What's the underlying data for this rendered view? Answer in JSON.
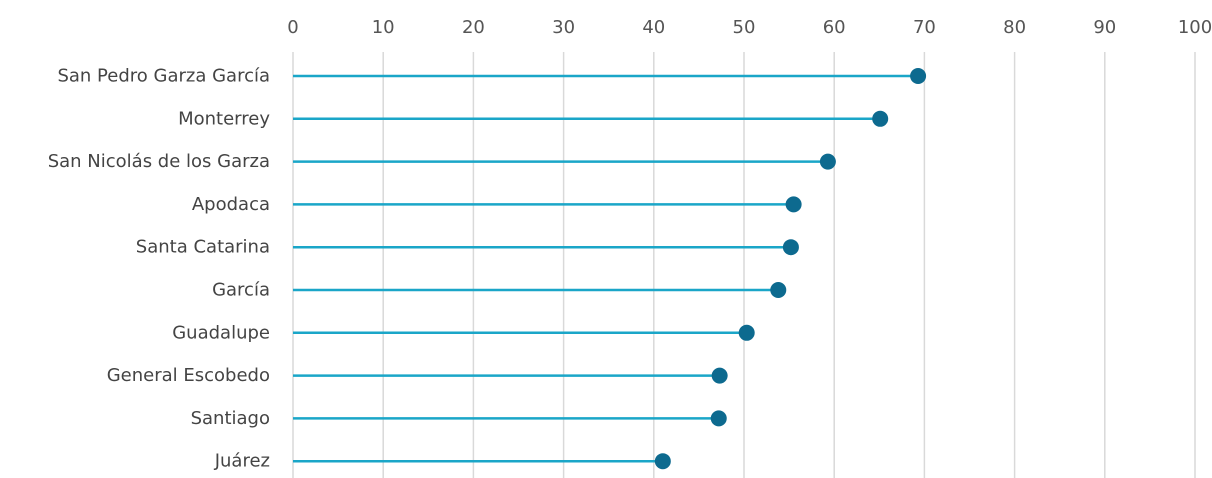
{
  "chart_data": {
    "type": "lollipop",
    "title": "",
    "xlabel": "",
    "ylabel": "",
    "orientation": "horizontal",
    "xlim": [
      0,
      100
    ],
    "x_ticks": [
      0,
      10,
      20,
      30,
      40,
      50,
      60,
      70,
      80,
      90,
      100
    ],
    "x_axis_position": "top",
    "grid": "vertical",
    "legend": "none",
    "categories": [
      "San Pedro Garza García",
      "Monterrey",
      "San Nicolás de los Garza",
      "Apodaca",
      "Santa Catarina",
      "García",
      "Guadalupe",
      "General Escobedo",
      "Santiago",
      "Juárez"
    ],
    "values": [
      69.3,
      65.1,
      59.3,
      55.5,
      55.2,
      53.8,
      50.3,
      47.3,
      47.2,
      41.0
    ],
    "colors": {
      "stem": "#1aa6c8",
      "dot": "#0d6a8f",
      "grid": "#d9d9d9",
      "text": "#444444"
    }
  }
}
